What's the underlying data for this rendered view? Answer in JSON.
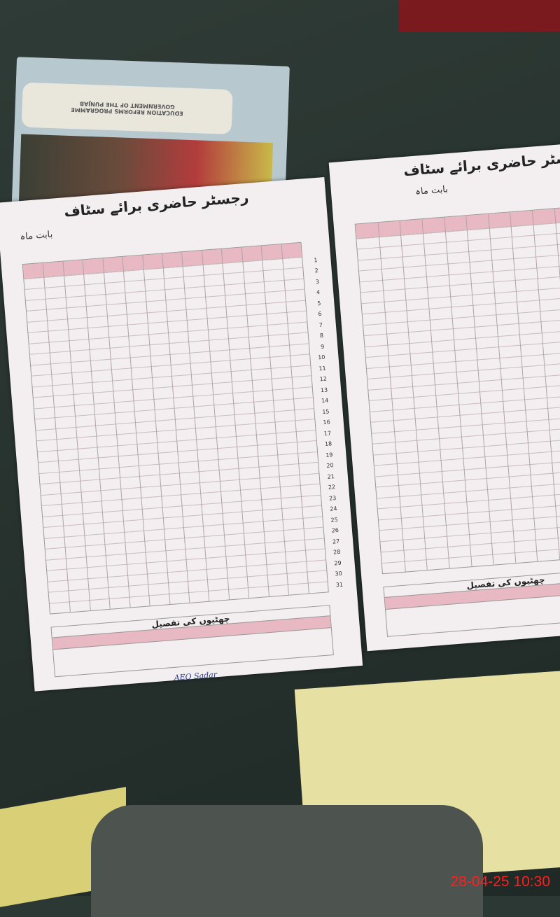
{
  "cover": {
    "line1": "EDUCATION REFORMS PROGRAMME",
    "line2": "GOVERNMENT OF THE PUNJAB"
  },
  "register": {
    "title": "رجسٹر حاضری برائے سٹاف",
    "month_label": "بابت ماہ",
    "leave_caption": "چھٹیوں کی تفصیل",
    "rows": [
      "1",
      "2",
      "3",
      "4",
      "5",
      "6",
      "7",
      "8",
      "9",
      "10",
      "11",
      "12",
      "13",
      "14",
      "15",
      "16",
      "17",
      "18",
      "19",
      "20",
      "21",
      "22",
      "23",
      "24",
      "25",
      "26",
      "27",
      "28",
      "29",
      "30",
      "31"
    ],
    "handwritten_note": "AEO Sadar"
  },
  "timestamp": "28-04-25  10:30",
  "colors": {
    "header_pink": "#e8b9c3",
    "ink": "#2a3a8a",
    "stamp": "#ff1f1f"
  }
}
